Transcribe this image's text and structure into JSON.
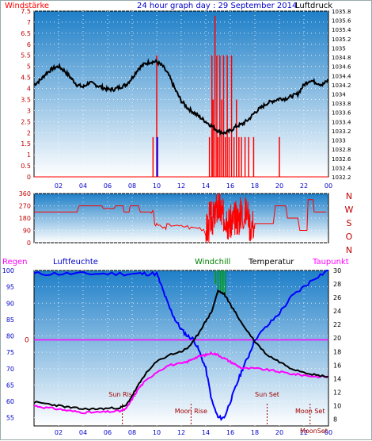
{
  "header": {
    "left_label": "Windstärke",
    "title": "24 hour graph day : 29 September 2014",
    "right_label": "Luftdruck"
  },
  "colors": {
    "bg_top": "#1e7fc8",
    "bg_bottom": "#ffffff",
    "wind": "#ff0000",
    "pressure": "#000000",
    "direction": "#ff0000",
    "temperature": "#000000",
    "humidity": "#0000ff",
    "dewpoint": "#ff00ff",
    "windchill": "#00a000",
    "rain": "#ff00ff",
    "axis_red": "#c00000",
    "axis_blue": "#0000cc",
    "sun_moon": "#a00000"
  },
  "chart_data": [
    {
      "type": "line",
      "title": "24 hour graph day : 29 September 2014",
      "left_label": "Windstärke",
      "right_label": "Luftdruck",
      "x_ticks": [
        "02",
        "04",
        "06",
        "08",
        "10",
        "12",
        "14",
        "16",
        "18",
        "20",
        "22",
        "00"
      ],
      "y_left_ticks": [
        "0",
        "0.5",
        "1",
        "1.5",
        "2",
        "2.5",
        "3",
        "3.5",
        "4",
        "4.5",
        "5",
        "5.5",
        "6",
        "6.5",
        "7",
        "7.5"
      ],
      "y_right_ticks": [
        "1032.2",
        "1032.4",
        "1032.6",
        "1032.8",
        "1033",
        "1033.2",
        "1033.4",
        "1033.6",
        "1033.8",
        "1034",
        "1034.2",
        "1034.4",
        "1034.6",
        "1034.8",
        "1035",
        "1035.2",
        "1035.4",
        "1035.6",
        "1035.8"
      ],
      "x_range": [
        0,
        24
      ],
      "ylim_left": [
        0,
        7.5
      ],
      "ylim_right": [
        1032.2,
        1035.8
      ],
      "series": [
        {
          "name": "Luftdruck",
          "axis": "right",
          "x": [
            0,
            0.5,
            1,
            1.5,
            2,
            2.5,
            3,
            3.5,
            4,
            4.5,
            5,
            5.5,
            6,
            6.5,
            7,
            7.5,
            8,
            8.5,
            9,
            9.5,
            10,
            10.5,
            11,
            11.5,
            12,
            12.5,
            13,
            13.5,
            14,
            14.5,
            15,
            15.5,
            16,
            16.5,
            17,
            17.5,
            18,
            18.5,
            19,
            19.5,
            20,
            20.5,
            21,
            21.5,
            22,
            22.5,
            23,
            23.5,
            24
          ],
          "values": [
            1034.2,
            1034.3,
            1034.45,
            1034.55,
            1034.6,
            1034.5,
            1034.35,
            1034.2,
            1034.15,
            1034.25,
            1034.2,
            1034.15,
            1034.1,
            1034.1,
            1034.15,
            1034.2,
            1034.35,
            1034.55,
            1034.65,
            1034.7,
            1034.7,
            1034.6,
            1034.4,
            1034.1,
            1033.85,
            1033.7,
            1033.6,
            1033.5,
            1033.4,
            1033.3,
            1033.2,
            1033.15,
            1033.2,
            1033.3,
            1033.35,
            1033.45,
            1033.6,
            1033.7,
            1033.8,
            1033.85,
            1033.9,
            1033.9,
            1033.95,
            1034.0,
            1034.2,
            1034.3,
            1034.25,
            1034.2,
            1034.3
          ]
        },
        {
          "name": "Windstärke",
          "axis": "left",
          "style": "bars",
          "bars": [
            {
              "x": 9.7,
              "v": 1.8
            },
            {
              "x": 10.0,
              "v": 5.5
            },
            {
              "x": 14.3,
              "v": 1.8
            },
            {
              "x": 14.5,
              "v": 5.5
            },
            {
              "x": 14.6,
              "v": 3.5
            },
            {
              "x": 14.75,
              "v": 7.3
            },
            {
              "x": 14.9,
              "v": 5.5
            },
            {
              "x": 15.0,
              "v": 1.8
            },
            {
              "x": 15.15,
              "v": 5.5
            },
            {
              "x": 15.3,
              "v": 3.5
            },
            {
              "x": 15.45,
              "v": 5.5
            },
            {
              "x": 15.6,
              "v": 1.8
            },
            {
              "x": 15.75,
              "v": 5.5
            },
            {
              "x": 15.9,
              "v": 1.8
            },
            {
              "x": 16.1,
              "v": 5.5
            },
            {
              "x": 16.3,
              "v": 1.8
            },
            {
              "x": 16.5,
              "v": 3.5
            },
            {
              "x": 16.7,
              "v": 1.8
            },
            {
              "x": 16.9,
              "v": 1.8
            },
            {
              "x": 17.2,
              "v": 1.8
            },
            {
              "x": 17.5,
              "v": 1.8
            },
            {
              "x": 17.9,
              "v": 1.8
            },
            {
              "x": 20.0,
              "v": 1.8
            }
          ]
        }
      ]
    },
    {
      "type": "scatter",
      "left_ticks": [
        "0",
        "90",
        "180",
        "270",
        "360"
      ],
      "right_labels": [
        "N",
        "W",
        "S",
        "O",
        "N"
      ],
      "ylim": [
        0,
        360
      ],
      "x_range": [
        0,
        24
      ],
      "series": [
        {
          "name": "Windrichtung",
          "x": [
            0,
            1,
            2,
            3,
            4,
            5,
            6,
            7,
            7.5,
            8,
            9,
            9.5,
            10,
            10.5,
            11,
            12,
            13,
            14,
            14.5,
            15,
            15.5,
            16,
            16.5,
            17,
            18,
            19,
            20,
            21,
            22,
            22.5,
            23,
            24
          ],
          "values": [
            225,
            225,
            225,
            225,
            270,
            270,
            250,
            270,
            225,
            270,
            225,
            225,
            130,
            110,
            130,
            120,
            110,
            100,
            180,
            250,
            200,
            150,
            180,
            220,
            140,
            140,
            270,
            180,
            90,
            315,
            225,
            225
          ]
        }
      ]
    },
    {
      "type": "line",
      "left_label_rain": "Regen",
      "left_label_humidity": "Luftfeuchte",
      "windchill_label": "Windchill",
      "temperature_label": "Temperatur",
      "dewpoint_label": "Taupunkt",
      "left_ticks": [
        "55",
        "60",
        "65",
        "70",
        "75",
        "80",
        "85",
        "90",
        "95",
        "100"
      ],
      "right_ticks": [
        "8",
        "10",
        "12",
        "14",
        "16",
        "18",
        "20",
        "22",
        "24",
        "26",
        "28",
        "30"
      ],
      "rain_value": "0",
      "x_ticks": [
        "02",
        "04",
        "06",
        "08",
        "10",
        "12",
        "14",
        "16",
        "18",
        "20",
        "22",
        "00"
      ],
      "ylim_left": [
        52.5,
        100
      ],
      "ylim_right": [
        7,
        30
      ],
      "x_range": [
        0,
        24
      ],
      "annotations": [
        {
          "label": "Sun Rise",
          "x": 7.2,
          "pos": "upper"
        },
        {
          "label": "Moon Rise",
          "x": 12.8,
          "pos": "lower"
        },
        {
          "label": "Sun Set",
          "x": 19.0,
          "pos": "upper"
        },
        {
          "label": "Moon Set",
          "x": 22.5,
          "pos": "lower"
        },
        {
          "label": "MoonSet",
          "x": 22.8,
          "pos": "bottom"
        }
      ],
      "series": [
        {
          "name": "Luftfeuchte",
          "axis": "left",
          "x": [
            0,
            2,
            4,
            6,
            8,
            9,
            10,
            10.5,
            11,
            11.5,
            12,
            12.5,
            13,
            13.5,
            14,
            14.5,
            15,
            15.5,
            16,
            16.5,
            17,
            17.5,
            18,
            19,
            20,
            21,
            22,
            23,
            24
          ],
          "values": [
            99,
            99,
            99,
            99,
            99,
            99,
            99,
            94,
            89,
            85,
            82,
            80,
            79,
            75,
            70,
            60,
            55,
            55,
            60,
            65,
            70,
            74,
            79,
            83,
            87,
            92,
            95,
            98,
            100
          ]
        },
        {
          "name": "Temperatur",
          "axis": "right",
          "x": [
            0,
            1,
            2,
            3,
            4,
            5,
            6,
            7,
            7.5,
            8,
            8.5,
            9,
            10,
            11,
            12,
            12.5,
            13,
            13.5,
            14,
            14.5,
            15,
            15.5,
            16,
            16.5,
            17,
            18,
            19,
            20,
            21,
            22,
            23,
            24
          ],
          "values": [
            10.5,
            10.3,
            10,
            9.7,
            9.5,
            9.5,
            9.6,
            9.7,
            10,
            11.5,
            13,
            14.5,
            16.5,
            17.5,
            18,
            18.5,
            19.5,
            21,
            22.5,
            24,
            27,
            26.5,
            25,
            23.5,
            22,
            19.5,
            17.5,
            16.5,
            15.5,
            15,
            14.5,
            14.3
          ]
        },
        {
          "name": "Taupunkt",
          "axis": "right",
          "x": [
            0,
            1,
            2,
            3,
            4,
            5,
            6,
            7,
            7.5,
            8,
            8.5,
            9,
            10,
            11,
            12,
            12.5,
            13,
            13.5,
            14,
            14.5,
            15,
            15.5,
            16,
            16.5,
            17,
            18,
            19,
            20,
            21,
            22,
            23,
            24
          ],
          "values": [
            10,
            9.7,
            9.5,
            9.2,
            9,
            9,
            9.1,
            9.2,
            9.5,
            11,
            12.5,
            13.5,
            15,
            16,
            16.2,
            16.5,
            17,
            17.3,
            17.5,
            17.8,
            17.5,
            17,
            16.5,
            16,
            15.5,
            15.5,
            15.3,
            15,
            14.7,
            14.5,
            14.3,
            14.3
          ]
        },
        {
          "name": "Windchill",
          "axis": "right",
          "style": "ticks",
          "x": [
            14.8,
            15.0,
            15.2,
            15.4,
            15.6
          ],
          "values": [
            30,
            30,
            30,
            30,
            30
          ],
          "base": [
            28,
            26.5,
            27,
            26.8,
            26.5
          ]
        },
        {
          "name": "Regen",
          "axis": "left",
          "style": "flat",
          "x": [
            0,
            24
          ],
          "values": [
            78.8,
            78.8
          ]
        }
      ]
    }
  ]
}
